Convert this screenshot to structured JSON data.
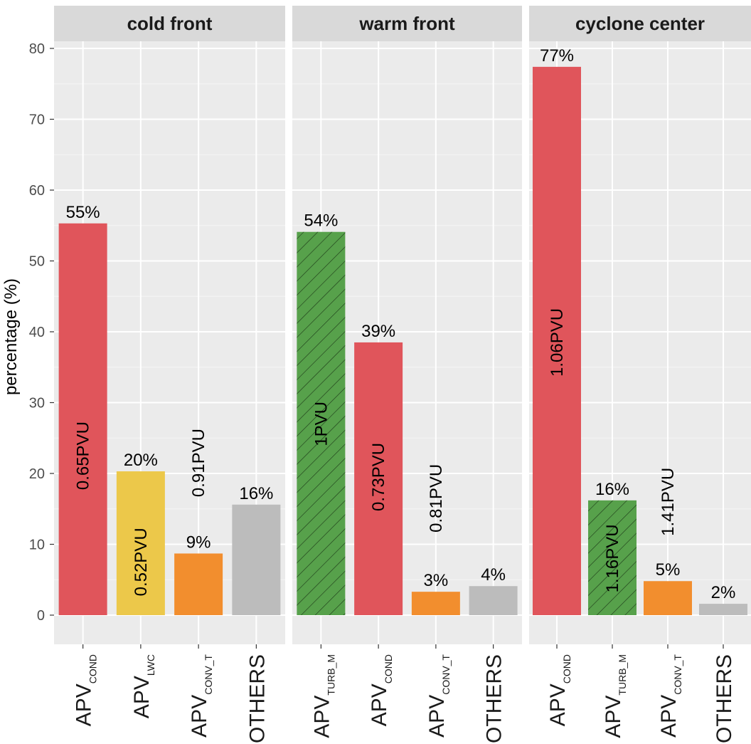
{
  "chart_data": {
    "type": "bar",
    "ylabel": "percentage (%)",
    "xlabel": "",
    "ylim": [
      -4,
      80
    ],
    "y_ticks": [
      0,
      10,
      20,
      30,
      40,
      50,
      60,
      70,
      80
    ],
    "grid": true,
    "colors": {
      "COND": "#e0555b",
      "LWC": "#ecc84a",
      "CONV_T": "#f28e2e",
      "OTHERS": "#bcbcbc",
      "TURB_M": "#57a14b",
      "panel_bg": "#ebebeb",
      "strip_bg": "#d9d9d9"
    },
    "panels": [
      {
        "title": "cold front",
        "bars": [
          {
            "base": "APV",
            "sub": "COND",
            "key": "COND",
            "value": 55.3,
            "pct_label": "55%",
            "pvu_label": "0.65PVU",
            "pvu_pos": 22.5,
            "hatched": false
          },
          {
            "base": "APV",
            "sub": "LWC",
            "key": "LWC",
            "value": 20.3,
            "pct_label": "20%",
            "pvu_label": "0.52PVU",
            "pvu_pos": 7.5,
            "hatched": false
          },
          {
            "base": "APV",
            "sub": "CONV_T",
            "key": "CONV_T",
            "value": 8.7,
            "pct_label": "9%",
            "pvu_label": "0.91PVU",
            "pvu_pos": 21.5,
            "hatched": false
          },
          {
            "base": "OTHERS",
            "sub": "",
            "key": "OTHERS",
            "value": 15.6,
            "pct_label": "16%",
            "pvu_label": "",
            "pvu_pos": 0,
            "hatched": false
          }
        ]
      },
      {
        "title": "warm front",
        "bars": [
          {
            "base": "APV",
            "sub": "TURB_M",
            "key": "TURB_M",
            "value": 54.1,
            "pct_label": "54%",
            "pvu_label": "1PVU",
            "pvu_pos": 27,
            "hatched": true
          },
          {
            "base": "APV",
            "sub": "COND",
            "key": "COND",
            "value": 38.5,
            "pct_label": "39%",
            "pvu_label": "0.73PVU",
            "pvu_pos": 19.5,
            "hatched": false
          },
          {
            "base": "APV",
            "sub": "CONV_T",
            "key": "CONV_T",
            "value": 3.3,
            "pct_label": "3%",
            "pvu_label": "0.81PVU",
            "pvu_pos": 16.5,
            "hatched": false
          },
          {
            "base": "OTHERS",
            "sub": "",
            "key": "OTHERS",
            "value": 4.1,
            "pct_label": "4%",
            "pvu_label": "",
            "pvu_pos": 0,
            "hatched": false
          }
        ]
      },
      {
        "title": "cyclone center",
        "bars": [
          {
            "base": "APV",
            "sub": "COND",
            "key": "COND",
            "value": 77.4,
            "pct_label": "77%",
            "pvu_label": "1.06PVU",
            "pvu_pos": 38.5,
            "hatched": false
          },
          {
            "base": "APV",
            "sub": "TURB_M",
            "key": "TURB_M",
            "value": 16.2,
            "pct_label": "16%",
            "pvu_label": "1.16PVU",
            "pvu_pos": 8,
            "hatched": true
          },
          {
            "base": "APV",
            "sub": "CONV_T",
            "key": "CONV_T",
            "value": 4.8,
            "pct_label": "5%",
            "pvu_label": "1.41PVU",
            "pvu_pos": 16,
            "hatched": false
          },
          {
            "base": "OTHERS",
            "sub": "",
            "key": "OTHERS",
            "value": 1.6,
            "pct_label": "2%",
            "pvu_label": "",
            "pvu_pos": 0,
            "hatched": false
          }
        ]
      }
    ]
  }
}
